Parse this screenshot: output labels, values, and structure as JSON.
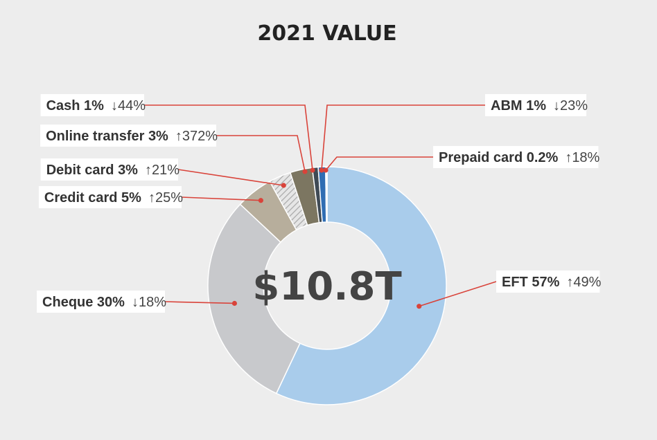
{
  "chart_data": {
    "type": "pie",
    "title": "2021 VALUE",
    "center_label": "$10.8T",
    "slices": [
      {
        "name": "EFT",
        "pct_label": "57%",
        "value": 57,
        "change": "↑49%",
        "color": "#a9cceb"
      },
      {
        "name": "Cheque",
        "pct_label": "30%",
        "value": 30,
        "change": "↓18%",
        "color": "#c8c9cc"
      },
      {
        "name": "Credit card",
        "pct_label": "5%",
        "value": 5,
        "change": "↑25%",
        "color": "#b7ae9c"
      },
      {
        "name": "Debit card",
        "pct_label": "3%",
        "value": 3,
        "change": "↑21%",
        "color": "#d4d4d4",
        "pattern": "hatched"
      },
      {
        "name": "Online transfer",
        "pct_label": "3%",
        "value": 3,
        "change": "↑372%",
        "color": "#7c7661"
      },
      {
        "name": "Cash",
        "pct_label": "1%",
        "value": 0.8,
        "change": "↓44%",
        "color": "#3f4a55"
      },
      {
        "name": "ABM",
        "pct_label": "1%",
        "value": 1,
        "change": "↓23%",
        "color": "#2f6db3"
      },
      {
        "name": "Prepaid card",
        "pct_label": "0.2%",
        "value": 0.2,
        "change": "↑18%",
        "color": "#ffffff"
      }
    ]
  }
}
